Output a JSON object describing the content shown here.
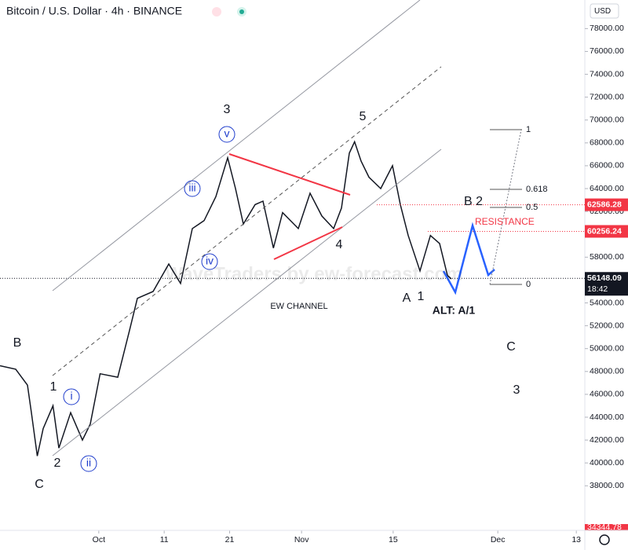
{
  "header": {
    "title": "Bitcoin / U.S. Dollar · 4h · BINANCE",
    "currency": "USD"
  },
  "chart_data": {
    "type": "line",
    "color": "#131722",
    "x": [
      -15.1,
      -12.7,
      -10.9,
      -10.3,
      -9.4,
      -8.5,
      -7.0,
      -6.1,
      -4.3,
      -2.5,
      -1.3,
      0.2,
      2.9,
      4.7,
      5.9,
      8.3,
      10.7,
      12.5,
      14.3,
      16.1,
      17.9,
      19.7,
      20.9,
      22.1,
      23.9,
      25.1,
      26.7,
      28.1,
      30.5,
      32.3,
      34.1,
      35.9,
      37.1,
      38.3,
      39.1,
      40.1,
      41.3,
      43.1,
      44.9,
      46.1,
      47.3,
      49.1,
      50.7,
      52.1,
      53.3,
      53.9
    ],
    "series": [
      {
        "name": "BTCUSD",
        "values": [
          48500,
          48200,
          46800,
          44400,
          40600,
          43000,
          45000,
          41300,
          44400,
          42000,
          43400,
          47800,
          47500,
          51600,
          54400,
          55000,
          57400,
          55700,
          60500,
          61200,
          63300,
          66700,
          64000,
          60900,
          62600,
          62900,
          58800,
          61900,
          60500,
          63600,
          61600,
          60500,
          62300,
          67100,
          68100,
          66400,
          65000,
          64000,
          66000,
          62600,
          59900,
          56800,
          59900,
          59200,
          56400,
          56100
        ]
      }
    ],
    "xlim": [
      -15.1,
      74.3
    ],
    "xticks": [
      {
        "value": 0,
        "label": "Oct"
      },
      {
        "value": 10,
        "label": "11"
      },
      {
        "value": 20,
        "label": "21"
      },
      {
        "value": 31,
        "label": "Nov"
      },
      {
        "value": 45,
        "label": "15"
      },
      {
        "value": 61,
        "label": "Dec"
      },
      {
        "value": 73,
        "label": "13"
      }
    ],
    "ylim": [
      34100,
      80500
    ],
    "yticks": [
      {
        "value": 38000,
        "label": "38000.00"
      },
      {
        "value": 40000,
        "label": "40000.00"
      },
      {
        "value": 42000,
        "label": "42000.00"
      },
      {
        "value": 44000,
        "label": "44000.00"
      },
      {
        "value": 46000,
        "label": "46000.00"
      },
      {
        "value": 48000,
        "label": "48000.00"
      },
      {
        "value": 50000,
        "label": "50000.00"
      },
      {
        "value": 52000,
        "label": "52000.00"
      },
      {
        "value": 54000,
        "label": "54000.00"
      },
      {
        "value": 56000,
        "label": "56000.00"
      },
      {
        "value": 58000,
        "label": "58000.00"
      },
      {
        "value": 60000,
        "label": "60000.00"
      },
      {
        "value": 62000,
        "label": "62000.00"
      },
      {
        "value": 64000,
        "label": "64000.00"
      },
      {
        "value": 66000,
        "label": "66000.00"
      },
      {
        "value": 68000,
        "label": "68000.00"
      },
      {
        "value": 70000,
        "label": "70000.00"
      },
      {
        "value": 72000,
        "label": "72000.00"
      },
      {
        "value": 74000,
        "label": "74000.00"
      },
      {
        "value": 76000,
        "label": "76000.00"
      },
      {
        "value": 78000,
        "label": "78000.00"
      }
    ],
    "levels": [
      {
        "value": 62586.28,
        "label": "62586.28",
        "color": "#f23645"
      },
      {
        "value": 60256.24,
        "label": "60256.24",
        "color": "#f23645"
      },
      {
        "value": 56148.09,
        "label": "56148.09",
        "color": "#131722"
      }
    ],
    "countdown": "18:42",
    "low_label": "34344.78"
  },
  "annotations": [
    "3",
    "v",
    "iii",
    "iv",
    "5",
    "4",
    "B 2",
    "RESISTANCE",
    "A",
    "1",
    "ALT: A/1",
    "C",
    "3",
    "B",
    "1",
    "i",
    "2",
    "ii",
    "C",
    "EW CHANNEL",
    "1",
    "0.618",
    "0.5",
    "0",
    "WaveTraders by ew-forecast.com"
  ]
}
